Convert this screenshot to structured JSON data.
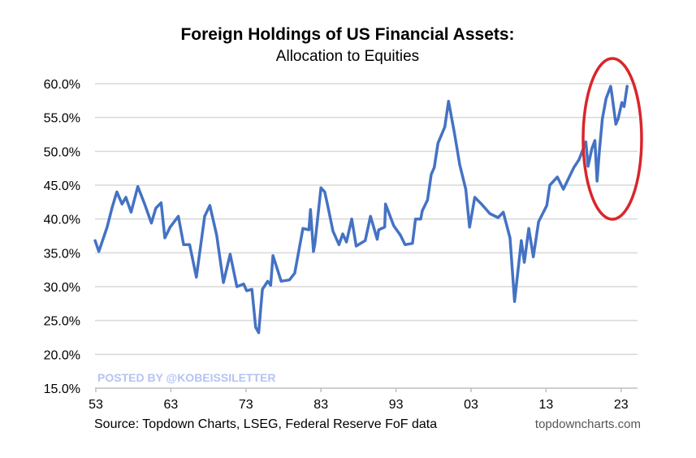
{
  "chart_data": {
    "type": "line",
    "title": "Foreign Holdings of US Financial Assets:",
    "subtitle": "Allocation to Equities",
    "xlabel": "",
    "ylabel": "",
    "ylim": [
      15,
      60
    ],
    "xlim": [
      1953,
      2024
    ],
    "yticks": [
      "15.0%",
      "20.0%",
      "25.0%",
      "30.0%",
      "35.0%",
      "40.0%",
      "45.0%",
      "50.0%",
      "55.0%",
      "60.0%"
    ],
    "xticks": [
      {
        "label": "53",
        "year": 1953
      },
      {
        "label": "63",
        "year": 1963
      },
      {
        "label": "73",
        "year": 1973
      },
      {
        "label": "83",
        "year": 1983
      },
      {
        "label": "93",
        "year": 1993
      },
      {
        "label": "03",
        "year": 2003
      },
      {
        "label": "13",
        "year": 2013
      },
      {
        "label": "23",
        "year": 2023
      }
    ],
    "grid": true,
    "line_color": "#4472c4",
    "highlight_color": "#d9262b",
    "highlight": "ellipse around 2018-2024 values",
    "x": [
      1952.9,
      1953.4,
      1954.5,
      1955.2,
      1955.8,
      1956.5,
      1957,
      1957.7,
      1958.6,
      1959.5,
      1960.4,
      1961,
      1961.7,
      1962.2,
      1962.9,
      1964,
      1964.7,
      1965.5,
      1966.4,
      1967.5,
      1968.2,
      1969.1,
      1970,
      1970.9,
      1971.8,
      1972.7,
      1973.1,
      1973.8,
      1974.3,
      1974.7,
      1975.2,
      1975.9,
      1976.3,
      1976.6,
      1977.7,
      1978.8,
      1979.5,
      1980.6,
      1981.4,
      1981.6,
      1982,
      1982.2,
      1983,
      1983.5,
      1983.9,
      1984.6,
      1985.4,
      1985.9,
      1986.4,
      1987.1,
      1987.7,
      1988.9,
      1989.6,
      1990.5,
      1990.7,
      1991.5,
      1991.6,
      1992.7,
      1993.6,
      1994.2,
      1995.2,
      1995.6,
      1996.3,
      1996.5,
      1997.2,
      1997.7,
      1998.1,
      1998.6,
      1999.5,
      2000,
      2000.8,
      2001.5,
      2002.3,
      2002.8,
      2003.5,
      2004.4,
      2005.5,
      2006.6,
      2007.3,
      2008.2,
      2008.8,
      2009.7,
      2010.1,
      2010.7,
      2011.3,
      2012,
      2013.1,
      2013.5,
      2014.5,
      2015.3,
      2016.7,
      2017.4,
      2018.3,
      2018.6,
      2019.1,
      2019.5,
      2019.8,
      2020.1,
      2020.5,
      2021,
      2021.6,
      2021.8,
      2022.3,
      2022.6,
      2023.1,
      2023.4,
      2023.8
    ],
    "y": [
      36.8,
      35.2,
      38.8,
      41.8,
      44,
      42.2,
      43.2,
      41,
      44.8,
      42.2,
      39.4,
      41.6,
      42.4,
      37.2,
      38.8,
      40.4,
      36.2,
      36.2,
      31.4,
      40.4,
      42,
      37.6,
      30.6,
      34.8,
      30,
      30.4,
      29.4,
      29.6,
      24,
      23.2,
      29.6,
      30.8,
      30.2,
      34.6,
      30.8,
      31,
      32,
      38.6,
      38.4,
      41.4,
      35.2,
      36.4,
      44.6,
      44,
      42,
      38.2,
      36.2,
      37.8,
      36.6,
      40,
      36,
      36.8,
      40.4,
      37,
      38.4,
      38.8,
      42.2,
      39,
      37.6,
      36.2,
      36.4,
      40,
      40,
      41.2,
      42.8,
      46.6,
      47.6,
      51.2,
      53.6,
      57.4,
      52.6,
      48,
      44.4,
      38.8,
      43.2,
      42.2,
      40.8,
      40.2,
      41,
      37.2,
      27.8,
      36.8,
      33.6,
      38.6,
      34.4,
      39.6,
      42,
      45,
      46.2,
      44.4,
      47.6,
      48.8,
      51.4,
      47.8,
      50.4,
      51.6,
      45.6,
      50,
      54.8,
      57.8,
      59.6,
      58.2,
      54,
      54.8,
      57.2,
      56.6,
      59.6
    ]
  },
  "watermark": "POSTED BY @KOBEISSILETTER",
  "footer": {
    "source": "Source: Topdown Charts, LSEG, Federal Reserve FoF data",
    "site": "topdowncharts.com"
  }
}
